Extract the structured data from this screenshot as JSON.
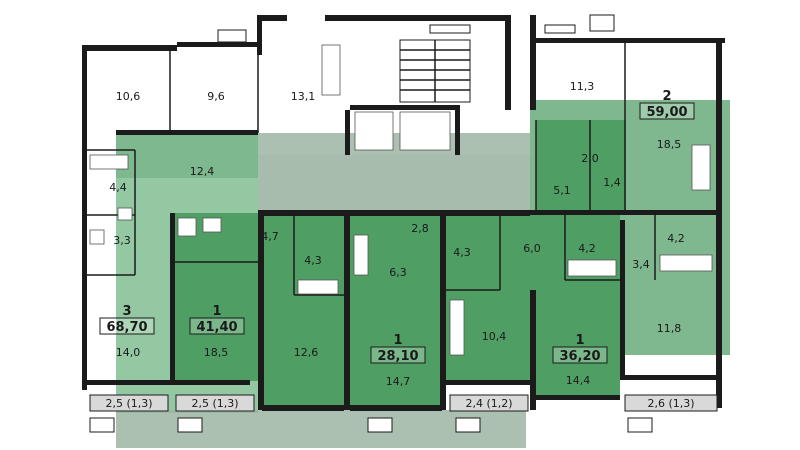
{
  "apartments": [
    {
      "id": "apt-3",
      "rooms": "3",
      "area": "68,70",
      "color": "#4f9f64"
    },
    {
      "id": "apt-1a",
      "rooms": "1",
      "area": "41,40",
      "color": "#4f9f64"
    },
    {
      "id": "apt-1b",
      "rooms": "1",
      "area": "28,10",
      "color": "#4f9f64"
    },
    {
      "id": "apt-1c",
      "rooms": "1",
      "area": "36,20",
      "color": "#4f9f64"
    },
    {
      "id": "apt-2",
      "rooms": "2",
      "area": "59,00",
      "color": "#4f9f64"
    }
  ],
  "room_areas": {
    "r106": "10,6",
    "r96": "9,6",
    "r131": "13,1",
    "r113": "11,3",
    "r185a": "18,5",
    "r124": "12,4",
    "r44a": "4,4",
    "r33": "3,3",
    "r140": "14,0",
    "r47": "4,7",
    "r43a": "4,3",
    "r185b": "18,5",
    "r126": "12,6",
    "r28": "2,8",
    "r63": "6,3",
    "r43b": "4,3",
    "r147": "14,7",
    "r60": "6,0",
    "r42a": "4,2",
    "r104": "10,4",
    "r144": "14,4",
    "r20": "2,0",
    "r51": "5,1",
    "r14": "1,4",
    "r42b": "4,2",
    "r34": "3,4",
    "r118": "11,8"
  },
  "balconies": [
    "2,5 (1,3)",
    "2,5 (1,3)",
    "2,4 (1,2)",
    "2,6 (1,3)"
  ],
  "colors": {
    "highlight": "#4f9f64",
    "corridor": "#8fa896",
    "wall": "#1b1b1b"
  }
}
